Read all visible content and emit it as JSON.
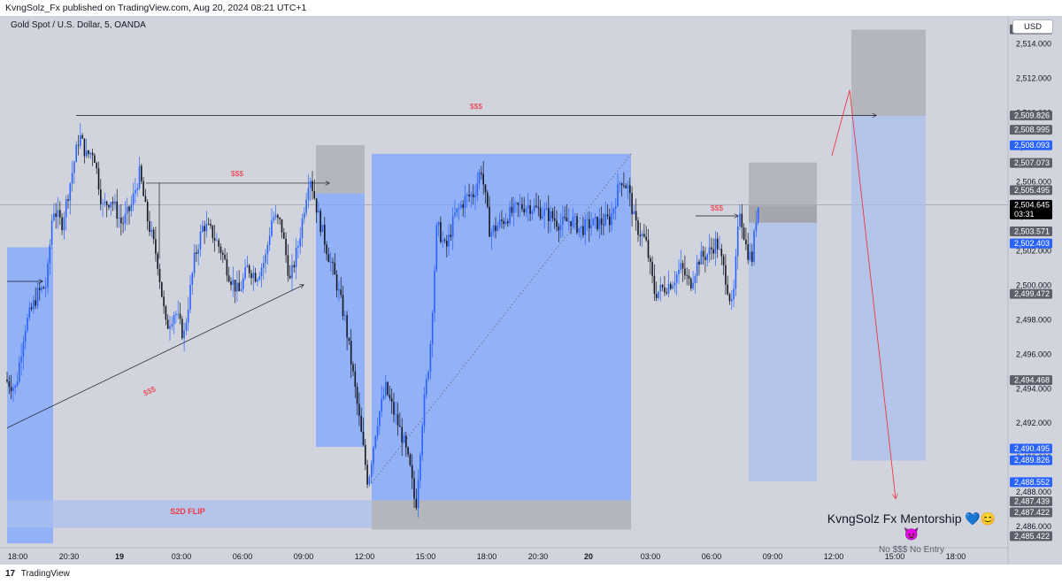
{
  "header": {
    "publish_line": "KvngSolz_Fx published on TradingView.com, Aug 20, 2024 08:21 UTC+1"
  },
  "chart_header": {
    "symbol_line": "Gold Spot / U.S. Dollar, 5, OANDA",
    "currency": "USD"
  },
  "watermark": {
    "title": "KvngSolz Fx Mentorship 💙😊😈",
    "subtitle": "No $$$ No Entry"
  },
  "footer": {
    "brand": "TradingView",
    "logo_glyph": "17"
  },
  "colors": {
    "background": "#d1d4dc",
    "up_candle": "#2962ff",
    "down_candle": "#131722",
    "zone_blue": "#7ea6ff",
    "zone_gray": "#a9acb4",
    "label_red": "#f23645",
    "tag_blue": "#2962ff",
    "tag_gray": "#5d606b"
  },
  "chart_data": {
    "type": "candlestick",
    "title": "",
    "ylim": [
      2484.8,
      2515.6
    ],
    "y_ticks": [
      2486,
      2488,
      2490,
      2492,
      2494,
      2496,
      2498,
      2500,
      2502,
      2504,
      2506,
      2508,
      2510,
      2512,
      2514
    ],
    "y_tick_labels": [
      "2,486.000",
      "2,488.000",
      "2,490.000",
      "2,492.000",
      "2,494.000",
      "2,496.000",
      "2,498.000",
      "2,500.000",
      "2,502.000",
      "2,504.000",
      "2,506.000",
      "2,508.000",
      "2,510.000",
      "2,512.000",
      "2,514.000"
    ],
    "xlim": [
      0,
      1139
    ],
    "x_ticks": [
      {
        "x": 20,
        "label": "18:00"
      },
      {
        "x": 78,
        "label": "20:30"
      },
      {
        "x": 135,
        "label": "19"
      },
      {
        "x": 205,
        "label": "03:00"
      },
      {
        "x": 274,
        "label": "06:00"
      },
      {
        "x": 343,
        "label": "09:00"
      },
      {
        "x": 412,
        "label": "12:00"
      },
      {
        "x": 481,
        "label": "15:00"
      },
      {
        "x": 550,
        "label": "18:00"
      },
      {
        "x": 608,
        "label": "20:30"
      },
      {
        "x": 665,
        "label": "20"
      },
      {
        "x": 735,
        "label": "03:00"
      },
      {
        "x": 804,
        "label": "06:00"
      },
      {
        "x": 873,
        "label": "09:00"
      },
      {
        "x": 942,
        "label": "12:00"
      },
      {
        "x": 1011,
        "label": "15:00"
      },
      {
        "x": 1080,
        "label": "18:00"
      }
    ],
    "price_path": [
      [
        8,
        2494.5
      ],
      [
        20,
        2494.0
      ],
      [
        30,
        2497.5
      ],
      [
        45,
        2499.5
      ],
      [
        55,
        2500.0
      ],
      [
        62,
        2504.5
      ],
      [
        72,
        2503.5
      ],
      [
        80,
        2505.5
      ],
      [
        92,
        2508.7
      ],
      [
        100,
        2507.5
      ],
      [
        108,
        2507.8
      ],
      [
        118,
        2504.5
      ],
      [
        128,
        2505.0
      ],
      [
        140,
        2503.5
      ],
      [
        150,
        2504.5
      ],
      [
        160,
        2506.5
      ],
      [
        168,
        2504.0
      ],
      [
        180,
        2501.5
      ],
      [
        190,
        2497.5
      ],
      [
        200,
        2498.5
      ],
      [
        210,
        2497.0
      ],
      [
        222,
        2501.5
      ],
      [
        232,
        2503.5
      ],
      [
        242,
        2503.0
      ],
      [
        252,
        2502.0
      ],
      [
        262,
        2500.5
      ],
      [
        272,
        2499.5
      ],
      [
        282,
        2501.0
      ],
      [
        292,
        2500.5
      ],
      [
        302,
        2501.5
      ],
      [
        310,
        2504.0
      ],
      [
        320,
        2503.5
      ],
      [
        330,
        2500.2
      ],
      [
        340,
        2502.5
      ],
      [
        352,
        2506.5
      ],
      [
        362,
        2504.0
      ],
      [
        372,
        2502.0
      ],
      [
        382,
        2500.2
      ],
      [
        392,
        2498.0
      ],
      [
        402,
        2494.5
      ],
      [
        410,
        2491.5
      ],
      [
        418,
        2488.5
      ],
      [
        428,
        2492.0
      ],
      [
        438,
        2494.0
      ],
      [
        448,
        2492.5
      ],
      [
        458,
        2491.0
      ],
      [
        466,
        2489.2
      ],
      [
        472,
        2487.0
      ],
      [
        480,
        2492.5
      ],
      [
        488,
        2496.0
      ],
      [
        496,
        2503.5
      ],
      [
        506,
        2502.0
      ],
      [
        516,
        2504.0
      ],
      [
        528,
        2505.0
      ],
      [
        538,
        2505.3
      ],
      [
        546,
        2506.8
      ],
      [
        556,
        2503.0
      ],
      [
        566,
        2503.5
      ],
      [
        576,
        2504.0
      ],
      [
        588,
        2504.5
      ],
      [
        600,
        2504.6
      ],
      [
        612,
        2504.3
      ],
      [
        624,
        2504.0
      ],
      [
        636,
        2503.5
      ],
      [
        648,
        2503.8
      ],
      [
        658,
        2503.2
      ],
      [
        668,
        2503.5
      ],
      [
        680,
        2503.6
      ],
      [
        692,
        2503.8
      ],
      [
        704,
        2506.2
      ],
      [
        712,
        2505.6
      ],
      [
        720,
        2503.5
      ],
      [
        732,
        2502.5
      ],
      [
        742,
        2499.5
      ],
      [
        752,
        2499.8
      ],
      [
        762,
        2500.2
      ],
      [
        772,
        2501.0
      ],
      [
        782,
        2500.0
      ],
      [
        792,
        2501.5
      ],
      [
        802,
        2501.8
      ],
      [
        812,
        2502.5
      ],
      [
        822,
        2500.5
      ],
      [
        830,
        2498.5
      ],
      [
        838,
        2504.5
      ],
      [
        846,
        2502.0
      ],
      [
        852,
        2501.5
      ],
      [
        858,
        2504.6
      ]
    ],
    "zones": [
      {
        "kind": "blue",
        "x1": 8,
        "x2": 60,
        "y1": 2502.18,
        "y2": 2485.0
      },
      {
        "kind": "blue",
        "x1": 357,
        "x2": 412,
        "y1": 2505.3,
        "y2": 2490.6
      },
      {
        "kind": "gray",
        "x1": 357,
        "x2": 412,
        "y1": 2508.1,
        "y2": 2505.3
      },
      {
        "kind": "blue",
        "x1": 420,
        "x2": 713,
        "y1": 2507.6,
        "y2": 2487.5
      },
      {
        "kind": "gray",
        "x1": 420,
        "x2": 713,
        "y1": 2487.5,
        "y2": 2485.8
      },
      {
        "kind": "blue-light",
        "x1": 8,
        "x2": 420,
        "y1": 2487.5,
        "y2": 2485.9
      },
      {
        "kind": "gray",
        "x1": 846,
        "x2": 923,
        "y1": 2507.1,
        "y2": 2504.6
      },
      {
        "kind": "gray-dark",
        "x1": 846,
        "x2": 923,
        "y1": 2504.6,
        "y2": 2503.6
      },
      {
        "kind": "blue-light",
        "x1": 846,
        "x2": 923,
        "y1": 2503.6,
        "y2": 2488.6
      },
      {
        "kind": "gray",
        "x1": 962,
        "x2": 1046,
        "y1": 2514.8,
        "y2": 2509.8
      },
      {
        "kind": "blue-light",
        "x1": 962,
        "x2": 1046,
        "y1": 2509.8,
        "y2": 2489.8
      }
    ],
    "lines": [
      {
        "kind": "dark",
        "x1": 86,
        "y1": 2509.83,
        "x2": 990,
        "y2": 2509.83,
        "arrow": true
      },
      {
        "kind": "dark",
        "x1": 165,
        "y1": 2505.9,
        "x2": 372,
        "y2": 2505.9,
        "arrow": true
      },
      {
        "kind": "dark",
        "x1": 8,
        "y1": 2500.2,
        "x2": 48,
        "y2": 2500.2,
        "arrow": true
      },
      {
        "kind": "dark",
        "x1": 786,
        "y1": 2504.0,
        "x2": 834,
        "y2": 2504.0,
        "arrow": true
      },
      {
        "kind": "dark",
        "x1": 8,
        "y1": 2491.7,
        "x2": 343,
        "y2": 2500.0,
        "arrow": true
      },
      {
        "kind": "dark",
        "x1": 180,
        "y1": 2505.9,
        "x2": 180,
        "y2": 2501.5,
        "arrow": false
      },
      {
        "kind": "dotted",
        "x1": 420,
        "y1": 2488.5,
        "x2": 713,
        "y2": 2507.6,
        "arrow": false
      },
      {
        "kind": "red",
        "x1": 940,
        "y1": 2507.5,
        "x2": 960,
        "y2": 2511.3,
        "arrow": false
      },
      {
        "kind": "red",
        "x1": 960,
        "y1": 2511.3,
        "x2": 1012,
        "y2": 2487.6,
        "arrow": true
      }
    ],
    "annotations": [
      {
        "x": 538,
        "y": 2510.2,
        "text": "$$$"
      },
      {
        "x": 268,
        "y": 2506.3,
        "text": "$$$"
      },
      {
        "x": 170,
        "y": 2493.7,
        "text": "$$$",
        "rotate": -24
      },
      {
        "x": 810,
        "y": 2504.3,
        "text": "$$$"
      },
      {
        "x": 212,
        "y": 2486.7,
        "text": "S2D FLIP",
        "bold": true
      }
    ],
    "price_tags": [
      {
        "value": "2,514.826",
        "y": 2514.826,
        "color": "gray"
      },
      {
        "value": "2,509.826",
        "y": 2509.826,
        "color": "gray"
      },
      {
        "value": "2,508.995",
        "y": 2508.995,
        "color": "gray"
      },
      {
        "value": "2,508.093",
        "y": 2508.093,
        "color": "blue"
      },
      {
        "value": "2,507.073",
        "y": 2507.073,
        "color": "gray"
      },
      {
        "value": "2,505.495",
        "y": 2505.495,
        "color": "gray"
      },
      {
        "value": "2,504.645",
        "y": 2504.645,
        "color": "black",
        "sub": "03:31"
      },
      {
        "value": "2,503.571",
        "y": 2503.1,
        "color": "gray"
      },
      {
        "value": "2,502.403",
        "y": 2502.403,
        "color": "blue"
      },
      {
        "value": "2,499.472",
        "y": 2499.472,
        "color": "gray"
      },
      {
        "value": "2,494.468",
        "y": 2494.468,
        "color": "gray"
      },
      {
        "value": "2,490.495",
        "y": 2490.495,
        "color": "blue"
      },
      {
        "value": "2,489.826",
        "y": 2489.826,
        "color": "blue"
      },
      {
        "value": "2,488.552",
        "y": 2488.552,
        "color": "blue"
      },
      {
        "value": "2,487.439",
        "y": 2487.439,
        "color": "gray"
      },
      {
        "value": "2,487.422",
        "y": 2486.8,
        "color": "gray"
      },
      {
        "value": "2,485.422",
        "y": 2485.422,
        "color": "gray"
      }
    ],
    "last_price": 2504.645
  }
}
